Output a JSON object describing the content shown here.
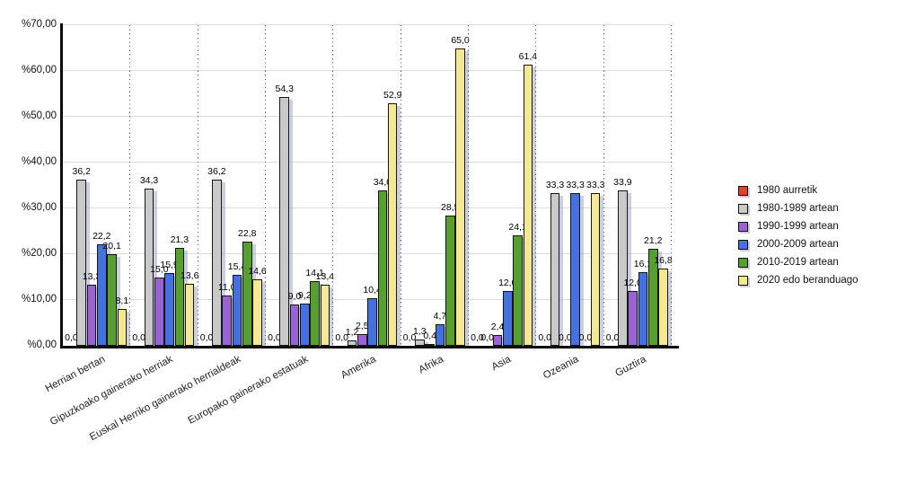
{
  "chart_data": {
    "type": "bar",
    "title": "",
    "xlabel": "",
    "ylabel": "",
    "categories": [
      "Herrian bertan",
      "Gipuzkoako gainerako herriak",
      "Euskal Herriko gainerako herrialdeak",
      "Europako gainerako estatuak",
      "Amerika",
      "Afrika",
      "Asia",
      "Ozeania",
      "Guztira"
    ],
    "series": [
      {
        "name": "1980 aurretik",
        "color": "#e4422c",
        "values": [
          0.0,
          0.0,
          0.0,
          0.0,
          0.0,
          0.0,
          0.0,
          0.0,
          0.0
        ]
      },
      {
        "name": "1980-1989 artean",
        "color": "#c9c9c9",
        "values": [
          36.2,
          34.3,
          36.2,
          54.3,
          1.2,
          1.3,
          0.0,
          33.3,
          33.9
        ]
      },
      {
        "name": "1990-1999 artean",
        "color": "#9a63d4",
        "values": [
          13.3,
          15.0,
          11.0,
          9.0,
          2.5,
          0.4,
          2.4,
          0.0,
          12.0
        ]
      },
      {
        "name": "2000-2009 artean",
        "color": "#4471de",
        "values": [
          22.2,
          15.9,
          15.4,
          9.2,
          10.4,
          4.7,
          12.0,
          33.3,
          16.1
        ]
      },
      {
        "name": "2010-2019 artean",
        "color": "#57a02f",
        "values": [
          20.1,
          21.3,
          22.8,
          14.1,
          34.0,
          28.5,
          24.1,
          0.0,
          21.2
        ]
      },
      {
        "name": "2020 edo beranduago",
        "color": "#f4e992",
        "values": [
          8.1,
          13.6,
          14.6,
          13.4,
          52.9,
          65.0,
          61.4,
          33.3,
          16.8
        ]
      }
    ],
    "y_axis": {
      "min": 0,
      "max": 70,
      "step": 10,
      "tick_labels": [
        "%0,00",
        "%10,00",
        "%20,00",
        "%30,00",
        "%40,00",
        "%50,00",
        "%60,00",
        "%70,00"
      ]
    },
    "value_labels": "shown above each bar, decimal comma with one digit",
    "legend_position": "right",
    "grid": "horizontal light gray lines; dotted vertical category separators",
    "ylim": [
      0,
      70
    ]
  }
}
